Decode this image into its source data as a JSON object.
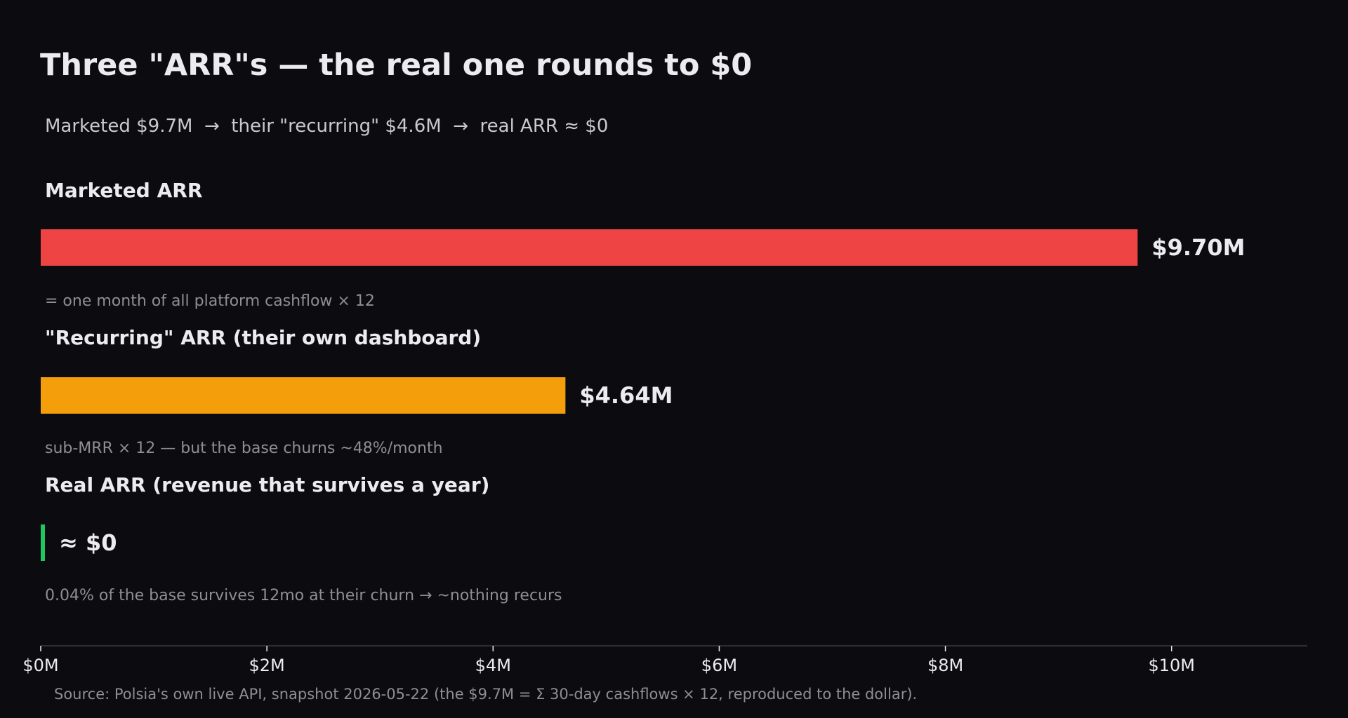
{
  "title": "Three \"ARR\"s — the real one rounds to $0",
  "subtitle": "Marketed $9.7M  →  their \"recurring\" $4.6M  →  real ARR ≈ $0",
  "source": "Source: Polsia's own live API, snapshot 2026-05-22 (the $9.7M = Σ 30-day cashflows × 12, reproduced to the dollar).",
  "colors": {
    "background": "#0b0b10",
    "marketed": "#ef4444",
    "recurring": "#f59e0b",
    "real": "#22c55e",
    "text": "#ececf0",
    "muted": "#8e8e96",
    "axis": "#3a3a42"
  },
  "chart_data": {
    "type": "bar",
    "orientation": "horizontal",
    "xlim": [
      0,
      11.2
    ],
    "x_unit": "$M",
    "x_ticks": [
      0,
      2,
      4,
      6,
      8,
      10
    ],
    "x_tick_labels": [
      "$0M",
      "$2M",
      "$4M",
      "$6M",
      "$8M",
      "$10M"
    ],
    "grid": false,
    "bars": [
      {
        "label": "Marketed ARR",
        "value": 9.7,
        "value_label": "$9.70M",
        "note": "= one month of all platform cashflow × 12",
        "color": "#ef4444"
      },
      {
        "label": "\"Recurring\" ARR (their own dashboard)",
        "value": 4.64,
        "value_label": "$4.64M",
        "note": "sub-MRR × 12 — but the base churns ~48%/month",
        "color": "#f59e0b"
      },
      {
        "label": "Real ARR (revenue that survives a year)",
        "value": 0.004,
        "value_label": "≈ $0",
        "note": "0.04% of the base survives 12mo at their churn → ~nothing recurs",
        "color": "#22c55e"
      }
    ]
  }
}
